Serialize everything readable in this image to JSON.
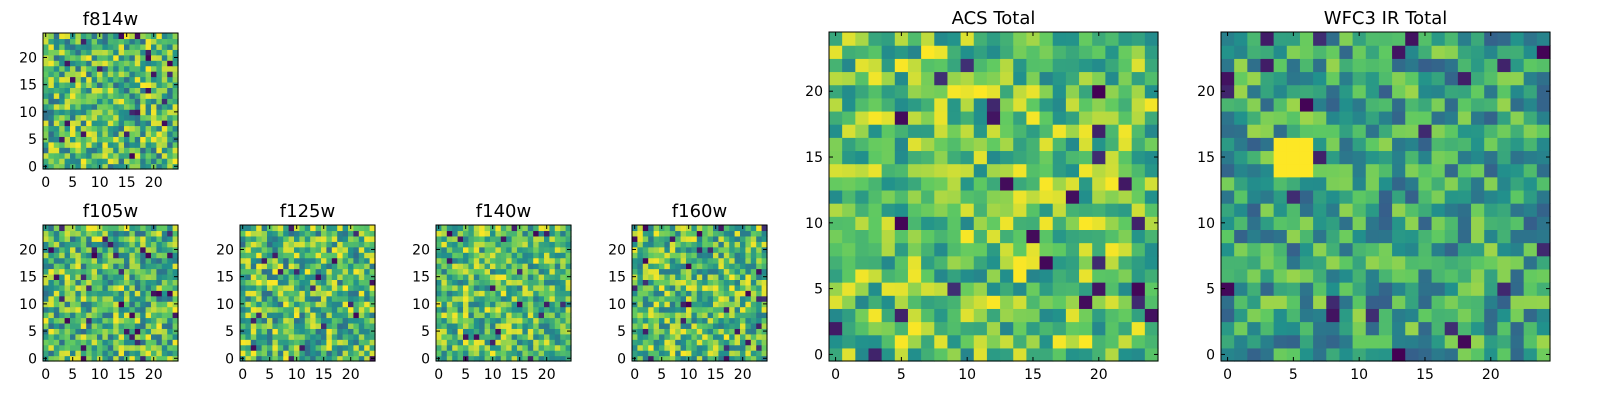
{
  "chart_data": [
    {
      "id": "f814w",
      "type": "heatmap",
      "title": "f814w",
      "size": 25,
      "xticks": [
        "0",
        "5",
        "10",
        "15",
        "20"
      ],
      "yticks": [
        "0",
        "5",
        "10",
        "15",
        "20"
      ],
      "seed": 17,
      "range": [
        0.35,
        1.0
      ]
    },
    {
      "id": "f105w",
      "type": "heatmap",
      "title": "f105w",
      "size": 25,
      "xticks": [
        "0",
        "5",
        "10",
        "15",
        "20"
      ],
      "yticks": [
        "0",
        "5",
        "10",
        "15",
        "20"
      ],
      "seed": 29,
      "range": [
        0.35,
        1.0
      ]
    },
    {
      "id": "f125w",
      "type": "heatmap",
      "title": "f125w",
      "size": 25,
      "xticks": [
        "0",
        "5",
        "10",
        "15",
        "20"
      ],
      "yticks": [
        "0",
        "5",
        "10",
        "15",
        "20"
      ],
      "seed": 41,
      "range": [
        0.35,
        1.0
      ]
    },
    {
      "id": "f140w",
      "type": "heatmap",
      "title": "f140w",
      "size": 25,
      "xticks": [
        "0",
        "5",
        "10",
        "15",
        "20"
      ],
      "yticks": [
        "0",
        "5",
        "10",
        "15",
        "20"
      ],
      "seed": 53,
      "range": [
        0.4,
        1.0
      ]
    },
    {
      "id": "f160w",
      "type": "heatmap",
      "title": "f160w",
      "size": 25,
      "xticks": [
        "0",
        "5",
        "10",
        "15",
        "20"
      ],
      "yticks": [
        "0",
        "5",
        "10",
        "15",
        "20"
      ],
      "seed": 67,
      "range": [
        0.4,
        1.0
      ]
    },
    {
      "id": "acs-total",
      "type": "heatmap",
      "title": "ACS Total",
      "size": 25,
      "xticks": [
        "0",
        "5",
        "10",
        "15",
        "20"
      ],
      "yticks": [
        "0",
        "5",
        "10",
        "15",
        "20"
      ],
      "seed": 79,
      "range": [
        0.45,
        1.0
      ]
    },
    {
      "id": "wfc3-ir-total",
      "type": "heatmap",
      "title": "WFC3 IR Total",
      "size": 25,
      "xticks": [
        "0",
        "5",
        "10",
        "15",
        "20"
      ],
      "yticks": [
        "0",
        "5",
        "10",
        "15",
        "20"
      ],
      "seed": 97,
      "range": [
        0.3,
        0.85
      ],
      "bright_block": {
        "x0": 4,
        "x1": 6,
        "y0": 14,
        "y1": 16
      }
    }
  ],
  "colormap": [
    "#440154",
    "#3b528b",
    "#21918c",
    "#5ec962",
    "#fde725"
  ]
}
